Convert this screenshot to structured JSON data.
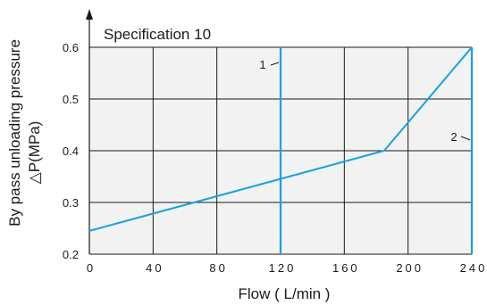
{
  "chart_data": {
    "type": "line",
    "title": "Specification 10",
    "xlabel": "Flow ( L/min )",
    "ylabel": "By pass unloading pressure",
    "ylabel2": "△P(MPa)",
    "xlim": [
      0,
      240
    ],
    "ylim": [
      0.2,
      0.6
    ],
    "x_ticks": [
      0,
      40,
      80,
      120,
      160,
      200,
      240
    ],
    "x_tick_labels": [
      "0",
      "40",
      "80",
      "120",
      "160",
      "200",
      "240"
    ],
    "y_ticks": [
      0.2,
      0.3,
      0.4,
      0.5,
      0.6
    ],
    "y_tick_labels": [
      "0.2",
      "0.3",
      "0.4",
      "0.5",
      "0.6"
    ],
    "grid": true,
    "series": [
      {
        "x": [
          0,
          185,
          240
        ],
        "y": [
          0.245,
          0.4,
          0.6
        ]
      }
    ],
    "vertical_lines": [
      {
        "x": 120,
        "label": "1"
      },
      {
        "x": 240,
        "label": "2"
      }
    ],
    "colors": {
      "series": "#1aa0e0",
      "grid": "#1a1a1a",
      "plot_bg": "#f2f2f2",
      "text": "#1a1a1a"
    }
  }
}
